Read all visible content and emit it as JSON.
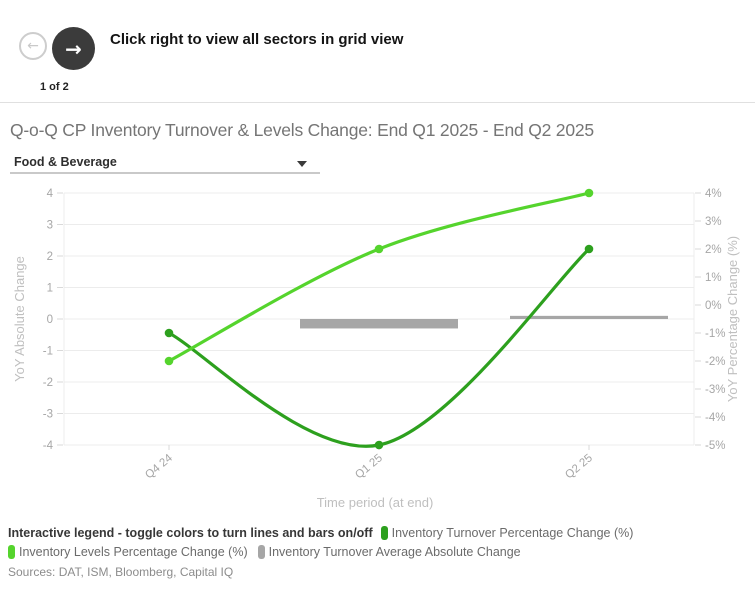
{
  "header": {
    "instruction": "Click right to view all sectors in grid view",
    "page_indicator": "1 of 2",
    "prev_arrow": "←",
    "next_arrow": "→"
  },
  "page_title": "Q-o-Q CP Inventory Turnover & Levels Change: End Q1 2025 - End Q2 2025",
  "sector_dropdown": {
    "value": "Food & Beverage"
  },
  "chart_data": {
    "type": "line+bar",
    "categories": [
      "Q4 24",
      "Q1 25",
      "Q2 25"
    ],
    "series": [
      {
        "name": "Inventory Turnover Percentage Change (%)",
        "type": "line",
        "yaxis": "right",
        "color": "#2da01e",
        "values": [
          -1,
          -5,
          2
        ]
      },
      {
        "name": "Inventory Levels Percentage Change (%)",
        "type": "line",
        "yaxis": "right",
        "color": "#55d42d",
        "values": [
          -2,
          2,
          4
        ]
      },
      {
        "name": "Inventory Turnover Average Absolute Change",
        "type": "bar",
        "yaxis": "left",
        "color": "#a6a6a6",
        "values": [
          null,
          -0.3,
          0.1
        ]
      }
    ],
    "xlabel": "Time period (at end)",
    "ylabel_left": "YoY Absolute Change",
    "ylabel_right": "YoY Percentage Change (%)",
    "yticks_left": [
      "4",
      "3",
      "2",
      "1",
      "0",
      "-1",
      "-2",
      "-3",
      "-4"
    ],
    "yticks_right": [
      "4%",
      "3%",
      "2%",
      "1%",
      "0%",
      "-1%",
      "-2%",
      "-3%",
      "-4%",
      "-5%"
    ],
    "ylim_left": [
      -4,
      4
    ],
    "ylim_right": [
      -5,
      4
    ],
    "grid": true,
    "legend_position": "bottom"
  },
  "legend": {
    "title": "Interactive legend - toggle colors to turn lines and bars on/off"
  },
  "sources": "Sources: DAT, ISM, Bloomberg, Capital IQ"
}
